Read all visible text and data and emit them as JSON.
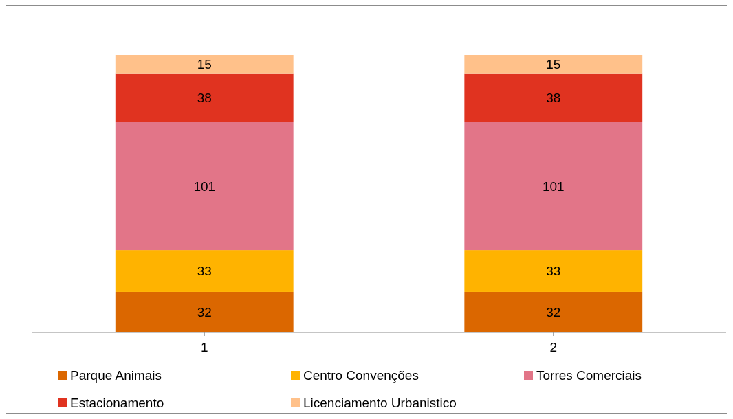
{
  "chart_data": {
    "type": "bar",
    "stacked": true,
    "data_labels": true,
    "legend": "bottom",
    "categories": [
      "1",
      "2"
    ],
    "series": [
      {
        "name": "Parque Animais",
        "color": "#db6700",
        "values": [
          32,
          32
        ]
      },
      {
        "name": "Centro Convenções",
        "color": "#ffb300",
        "values": [
          33,
          33
        ]
      },
      {
        "name": "Torres Comerciais",
        "color": "#e27588",
        "values": [
          101,
          101
        ]
      },
      {
        "name": "Estacionamento",
        "color": "#e03320",
        "values": [
          38,
          38
        ]
      },
      {
        "name": "Licenciamento Urbanistico",
        "color": "#ffc18a",
        "values": [
          15,
          15
        ]
      }
    ]
  }
}
